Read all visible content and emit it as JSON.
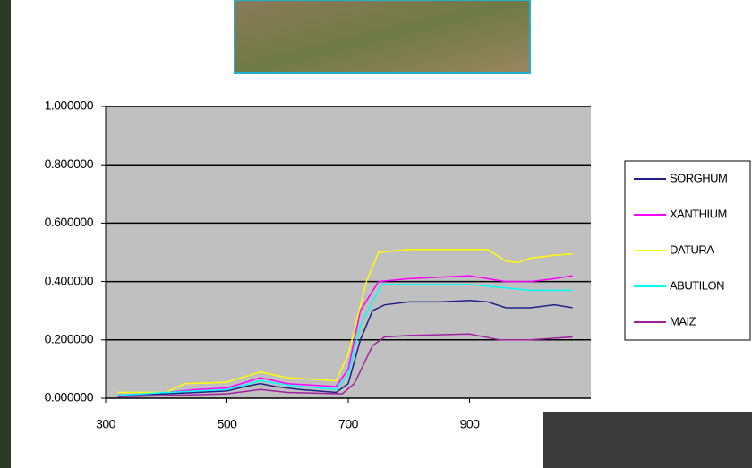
{
  "chart_data": {
    "type": "line",
    "xlim": [
      300,
      1100
    ],
    "xticks": [
      300,
      500,
      700,
      900
    ],
    "ylim": [
      0,
      1
    ],
    "yticks": [
      {
        "value": 0,
        "label": "0.000000"
      },
      {
        "value": 0.2,
        "label": "0.200000"
      },
      {
        "value": 0.4,
        "label": "0.400000"
      },
      {
        "value": 0.6,
        "label": "0.600000"
      },
      {
        "value": 0.8,
        "label": "0.800000"
      },
      {
        "value": 1,
        "label": "1.000000"
      }
    ],
    "grid": true,
    "series": [
      {
        "name": "SORGHUM",
        "color": "#20208a",
        "x": [
          320,
          400,
          450,
          500,
          530,
          555,
          580,
          620,
          680,
          700,
          720,
          740,
          760,
          800,
          850,
          900,
          930,
          960,
          1000,
          1040,
          1070
        ],
        "values": [
          0.01,
          0.015,
          0.02,
          0.025,
          0.04,
          0.05,
          0.04,
          0.03,
          0.02,
          0.05,
          0.2,
          0.3,
          0.32,
          0.33,
          0.33,
          0.335,
          0.33,
          0.31,
          0.31,
          0.32,
          0.31
        ]
      },
      {
        "name": "XANTHIUM",
        "color": "#ff00ff",
        "x": [
          320,
          400,
          450,
          500,
          555,
          600,
          680,
          700,
          720,
          750,
          800,
          900,
          930,
          960,
          1000,
          1040,
          1070
        ],
        "values": [
          0.01,
          0.02,
          0.03,
          0.035,
          0.07,
          0.05,
          0.04,
          0.1,
          0.3,
          0.4,
          0.41,
          0.42,
          0.41,
          0.4,
          0.4,
          0.41,
          0.42
        ]
      },
      {
        "name": "DATURA",
        "color": "#ffff00",
        "x": [
          320,
          400,
          430,
          500,
          555,
          600,
          680,
          700,
          730,
          750,
          800,
          900,
          930,
          960,
          980,
          1000,
          1040,
          1070
        ],
        "values": [
          0.02,
          0.02,
          0.05,
          0.055,
          0.09,
          0.07,
          0.06,
          0.15,
          0.4,
          0.5,
          0.51,
          0.51,
          0.51,
          0.47,
          0.465,
          0.48,
          0.49,
          0.495
        ]
      },
      {
        "name": "ABUTILON",
        "color": "#00ffff",
        "x": [
          320,
          400,
          450,
          500,
          555,
          600,
          680,
          700,
          720,
          755,
          800,
          900,
          950,
          1000,
          1070
        ],
        "values": [
          0.01,
          0.02,
          0.025,
          0.03,
          0.06,
          0.045,
          0.03,
          0.08,
          0.25,
          0.39,
          0.39,
          0.39,
          0.38,
          0.37,
          0.37
        ]
      },
      {
        "name": "MAIZ",
        "color": "#a020a0",
        "x": [
          320,
          500,
          555,
          600,
          690,
          710,
          740,
          760,
          800,
          900,
          950,
          1000,
          1070
        ],
        "values": [
          0.005,
          0.015,
          0.03,
          0.02,
          0.015,
          0.05,
          0.18,
          0.21,
          0.215,
          0.22,
          0.2,
          0.2,
          0.21
        ]
      }
    ]
  }
}
